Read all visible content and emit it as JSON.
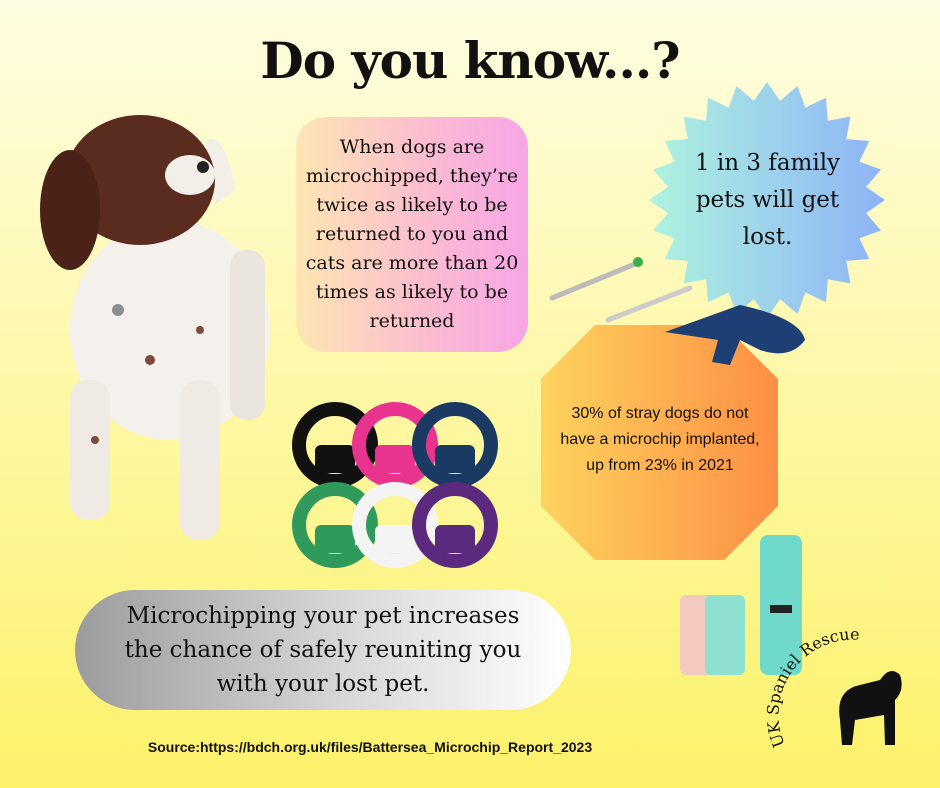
{
  "title": "Do you know...?",
  "fact_box": "When dogs are microchipped, they’re twice as likely to be returned to you and cats are more than 20 times as likely to be returned",
  "starburst": "1 in 3 family pets will get lost.",
  "octagon": "30% of stray dogs do not have a microchip implanted, up from 23% in 2021",
  "banner": "Microchipping your pet increases the chance of safely reuniting you with your lost pet.",
  "source": "Source:https://bdch.org.uk/files/Battersea_Microchip_Report_2023",
  "logo": "UK Spaniel Rescue"
}
